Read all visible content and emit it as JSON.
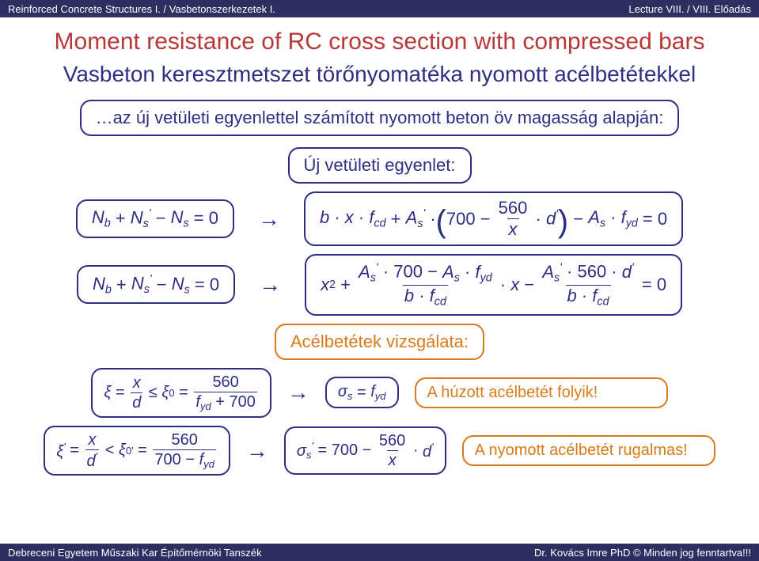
{
  "header": {
    "left": "Reinforced Concrete Structures I. / Vasbetonszerkezetek I.",
    "right": "Lecture VIII. / VIII. Előadás"
  },
  "footer": {
    "left": "Debreceni Egyetem Műszaki Kar Építőmérnöki Tanszék",
    "right": "Dr. Kovács Imre PhD © Minden jog fenntartva!!!"
  },
  "title": "Moment resistance of RC cross section with compressed bars",
  "subtitle": "Vasbeton keresztmetszet törőnyomatéka nyomott acélbetétekkel",
  "note": "…az új vetületi egyenlettel számított nyomott beton öv magasság alapján:",
  "new_eq_label": "Új vetületi egyenlet:",
  "steel_check_label": "Acélbetétek vizsgálata:",
  "tensile_ok": "A húzott acélbetét folyik!",
  "compressed_elastic": "A nyomott acélbetét rugalmas!",
  "colors": {
    "header_bg": "#2e2e60",
    "header_fg": "#ffffff",
    "title": "#b83838",
    "primary": "#2e2e82",
    "orange": "#d87a1a",
    "bg": "#ffffff"
  },
  "values": {
    "c560": "560",
    "c700": "700",
    "zero": "0"
  }
}
